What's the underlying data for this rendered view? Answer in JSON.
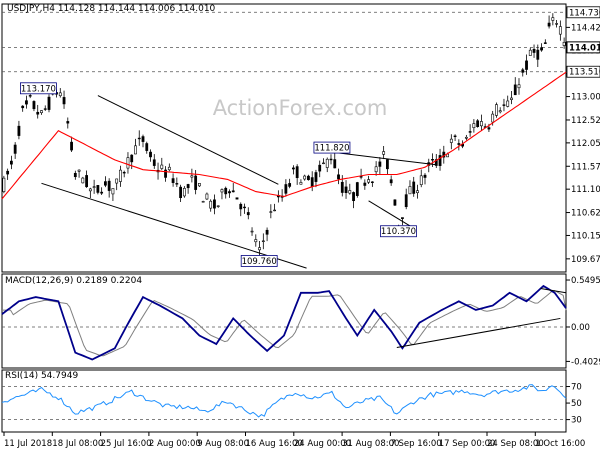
{
  "colors": {
    "background": "#ffffff",
    "candle": "#000000",
    "ma_line": "#ff0000",
    "macd_line": "#00008b",
    "macd_signal": "#808080",
    "rsi_line": "#1e90ff",
    "axis": "#000000",
    "box_border": "#000080",
    "watermark": "#c0c0c0"
  },
  "watermark": "ActionForex.com",
  "chart_data": [
    {
      "type": "candlestick",
      "title": "USDJPY,H4  114.128 114.144 114.006 114.010",
      "ylim": [
        109.4,
        114.9
      ],
      "y_ticks": [
        109.67,
        110.15,
        110.62,
        111.1,
        111.57,
        112.05,
        112.52,
        113.0,
        113.47,
        113.95,
        114.42
      ],
      "y_ticks_text": [
        "109.670",
        "110.150",
        "110.620",
        "111.100",
        "111.570",
        "112.050",
        "112.520",
        "113.000",
        "113.470",
        "113.950",
        "114.420"
      ],
      "price_tags": [
        {
          "value": 114.73,
          "text": "114.730",
          "style": "outline"
        },
        {
          "value": 114.01,
          "text": "114.010",
          "style": "current"
        },
        {
          "value": 113.51,
          "text": "113.510",
          "style": "outline"
        }
      ],
      "hlines": [
        114.73,
        114.01,
        113.51
      ],
      "annotations": [
        {
          "text": "113.170",
          "at": 0.1,
          "value": 113.17,
          "pos": "left-of"
        },
        {
          "text": "109.760",
          "at": 0.456,
          "value": 109.76,
          "pos": "below"
        },
        {
          "text": "111.820",
          "at": 0.585,
          "value": 111.82,
          "pos": "above"
        },
        {
          "text": "110.370",
          "at": 0.703,
          "value": 110.37,
          "pos": "below"
        }
      ],
      "trendlines": [
        {
          "from": [
            0.17,
            113.02
          ],
          "to": [
            0.49,
            111.2
          ]
        },
        {
          "from": [
            0.07,
            111.22
          ],
          "to": [
            0.54,
            109.48
          ]
        },
        {
          "from": [
            0.585,
            111.86
          ],
          "to": [
            0.77,
            111.6
          ]
        },
        {
          "from": [
            0.65,
            110.86
          ],
          "to": [
            0.73,
            110.3
          ]
        }
      ],
      "anchors": [
        [
          0.0,
          111.1
        ],
        [
          0.02,
          111.7
        ],
        [
          0.035,
          112.65
        ],
        [
          0.05,
          112.9
        ],
        [
          0.07,
          112.6
        ],
        [
          0.09,
          113.0
        ],
        [
          0.1,
          113.17
        ],
        [
          0.112,
          112.8
        ],
        [
          0.12,
          112.2
        ],
        [
          0.13,
          111.4
        ],
        [
          0.145,
          111.35
        ],
        [
          0.16,
          111.0
        ],
        [
          0.18,
          111.2
        ],
        [
          0.2,
          111.1
        ],
        [
          0.22,
          111.6
        ],
        [
          0.24,
          112.0
        ],
        [
          0.25,
          112.1
        ],
        [
          0.265,
          111.7
        ],
        [
          0.28,
          111.5
        ],
        [
          0.3,
          111.4
        ],
        [
          0.32,
          111.0
        ],
        [
          0.34,
          111.3
        ],
        [
          0.36,
          110.9
        ],
        [
          0.38,
          110.7
        ],
        [
          0.4,
          111.2
        ],
        [
          0.42,
          110.9
        ],
        [
          0.44,
          110.4
        ],
        [
          0.456,
          109.76
        ],
        [
          0.47,
          110.3
        ],
        [
          0.48,
          110.7
        ],
        [
          0.5,
          111.0
        ],
        [
          0.52,
          111.5
        ],
        [
          0.54,
          111.2
        ],
        [
          0.56,
          111.4
        ],
        [
          0.585,
          111.82
        ],
        [
          0.6,
          111.2
        ],
        [
          0.62,
          110.9
        ],
        [
          0.64,
          111.3
        ],
        [
          0.66,
          111.4
        ],
        [
          0.68,
          111.8
        ],
        [
          0.7,
          110.7
        ],
        [
          0.703,
          110.37
        ],
        [
          0.72,
          111.0
        ],
        [
          0.74,
          111.2
        ],
        [
          0.76,
          111.6
        ],
        [
          0.78,
          111.7
        ],
        [
          0.8,
          112.1
        ],
        [
          0.82,
          112.0
        ],
        [
          0.84,
          112.5
        ],
        [
          0.86,
          112.4
        ],
        [
          0.88,
          112.8
        ],
        [
          0.9,
          112.8
        ],
        [
          0.92,
          113.4
        ],
        [
          0.94,
          113.9
        ],
        [
          0.96,
          113.9
        ],
        [
          0.97,
          114.4
        ],
        [
          0.985,
          114.6
        ],
        [
          1.0,
          114.05
        ]
      ],
      "ma_anchors": [
        [
          0.0,
          110.9
        ],
        [
          0.05,
          111.6
        ],
        [
          0.1,
          112.3
        ],
        [
          0.15,
          112.0
        ],
        [
          0.2,
          111.7
        ],
        [
          0.25,
          111.5
        ],
        [
          0.3,
          111.45
        ],
        [
          0.35,
          111.4
        ],
        [
          0.4,
          111.3
        ],
        [
          0.45,
          111.05
        ],
        [
          0.5,
          110.95
        ],
        [
          0.55,
          111.15
        ],
        [
          0.6,
          111.3
        ],
        [
          0.65,
          111.4
        ],
        [
          0.7,
          111.4
        ],
        [
          0.75,
          111.55
        ],
        [
          0.8,
          111.9
        ],
        [
          0.85,
          112.3
        ],
        [
          0.9,
          112.7
        ],
        [
          0.95,
          113.1
        ],
        [
          1.0,
          113.5
        ]
      ],
      "series": [
        {
          "name": "Price"
        }
      ]
    },
    {
      "type": "line",
      "title": "MACD(12,26,9) 0.2189 0.2204",
      "ylim": [
        -0.48,
        0.62
      ],
      "y_ticks": [
        0.5495,
        0.0,
        -0.4029
      ],
      "y_ticks_text": [
        "0.5495",
        "0.00",
        "-0.4029"
      ],
      "hlines": [
        0.0
      ],
      "trendlines": [
        {
          "from": [
            0.7,
            -0.24
          ],
          "to": [
            0.99,
            0.1
          ]
        },
        {
          "from": [
            0.955,
            0.45
          ],
          "to": [
            1.0,
            0.4
          ]
        }
      ],
      "macd_anchors": [
        [
          0.0,
          0.15
        ],
        [
          0.03,
          0.3
        ],
        [
          0.06,
          0.35
        ],
        [
          0.1,
          0.3
        ],
        [
          0.13,
          -0.3
        ],
        [
          0.16,
          -0.38
        ],
        [
          0.2,
          -0.25
        ],
        [
          0.22,
          0.0
        ],
        [
          0.25,
          0.35
        ],
        [
          0.28,
          0.25
        ],
        [
          0.32,
          0.1
        ],
        [
          0.35,
          -0.1
        ],
        [
          0.38,
          -0.2
        ],
        [
          0.41,
          0.1
        ],
        [
          0.44,
          -0.1
        ],
        [
          0.47,
          -0.28
        ],
        [
          0.5,
          -0.1
        ],
        [
          0.53,
          0.4
        ],
        [
          0.56,
          0.4
        ],
        [
          0.58,
          0.42
        ],
        [
          0.61,
          0.1
        ],
        [
          0.63,
          -0.1
        ],
        [
          0.66,
          0.2
        ],
        [
          0.69,
          -0.05
        ],
        [
          0.71,
          -0.25
        ],
        [
          0.74,
          0.05
        ],
        [
          0.78,
          0.2
        ],
        [
          0.81,
          0.3
        ],
        [
          0.84,
          0.2
        ],
        [
          0.87,
          0.25
        ],
        [
          0.9,
          0.4
        ],
        [
          0.93,
          0.3
        ],
        [
          0.96,
          0.48
        ],
        [
          0.98,
          0.4
        ],
        [
          1.0,
          0.22
        ]
      ],
      "series": [
        {
          "name": "MACD"
        },
        {
          "name": "Signal"
        }
      ]
    },
    {
      "type": "line",
      "title": "RSI(14) 54.7949",
      "ylim": [
        15,
        90
      ],
      "y_ticks": [
        70,
        50,
        30
      ],
      "y_ticks_text": [
        "70",
        "50",
        "30"
      ],
      "hlines": [
        70,
        30
      ],
      "rsi_anchors": [
        [
          0.0,
          52
        ],
        [
          0.04,
          60
        ],
        [
          0.07,
          66
        ],
        [
          0.1,
          57
        ],
        [
          0.13,
          38
        ],
        [
          0.17,
          46
        ],
        [
          0.2,
          55
        ],
        [
          0.23,
          64
        ],
        [
          0.25,
          57
        ],
        [
          0.29,
          46
        ],
        [
          0.33,
          45
        ],
        [
          0.36,
          40
        ],
        [
          0.4,
          52
        ],
        [
          0.43,
          42
        ],
        [
          0.46,
          34
        ],
        [
          0.49,
          52
        ],
        [
          0.52,
          64
        ],
        [
          0.55,
          56
        ],
        [
          0.585,
          62
        ],
        [
          0.61,
          44
        ],
        [
          0.64,
          52
        ],
        [
          0.67,
          56
        ],
        [
          0.7,
          37
        ],
        [
          0.73,
          52
        ],
        [
          0.76,
          60
        ],
        [
          0.79,
          62
        ],
        [
          0.82,
          65
        ],
        [
          0.85,
          60
        ],
        [
          0.88,
          64
        ],
        [
          0.91,
          66
        ],
        [
          0.94,
          70
        ],
        [
          0.96,
          64
        ],
        [
          0.975,
          72
        ],
        [
          0.99,
          66
        ],
        [
          1.0,
          55
        ]
      ],
      "series": [
        {
          "name": "RSI"
        }
      ]
    }
  ],
  "x_axis": {
    "labels": [
      "11 Jul 2018",
      "18 Jul 08:00",
      "25 Jul 16:00",
      "2 Aug 00:00",
      "9 Aug 08:00",
      "16 Aug 16:00",
      "24 Aug 00:00",
      "31 Aug 08:00",
      "7 Sep 16:00",
      "17 Sep 00:00",
      "24 Sep 08:00",
      "1 Oct 16:00"
    ]
  }
}
